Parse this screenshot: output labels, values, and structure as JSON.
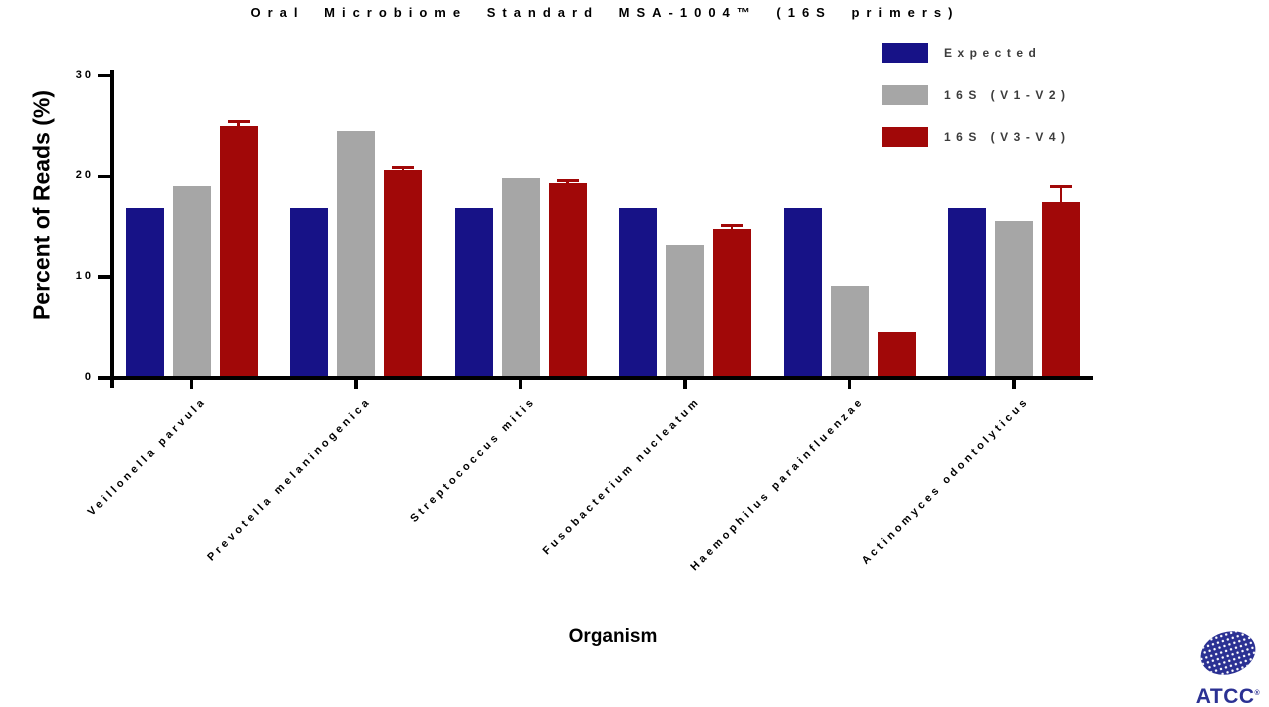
{
  "chart_data": {
    "type": "bar",
    "title": "Oral Microbiome Standard MSA-1004™ (16S primers)",
    "xlabel": "Organism",
    "ylabel": "Percent of Reads (%)",
    "ylim": [
      0,
      30
    ],
    "yticks": [
      0,
      10,
      20,
      30
    ],
    "grid": false,
    "legend_position": "top-right",
    "categories": [
      "Veillonella parvula",
      "Prevotella melaninogenica",
      "Streptococcus mitis",
      "Fusobacterium nucleatum",
      "Haemophilus parainfluenzae",
      "Actinomyces odontolyticus"
    ],
    "series": [
      {
        "name": "Expected",
        "color": "#171287",
        "values": [
          16.9,
          16.9,
          16.9,
          16.9,
          16.9,
          16.9
        ]
      },
      {
        "name": "16S (V1-V2)",
        "color": "#a6a6a6",
        "values": [
          19.0,
          24.5,
          19.8,
          13.2,
          9.1,
          15.6
        ]
      },
      {
        "name": "16S (V3-V4)",
        "color": "#a10808",
        "values": [
          25.0,
          20.6,
          19.3,
          14.8,
          4.6,
          17.5
        ],
        "errors": [
          0.4,
          0.3,
          0.3,
          0.3,
          0,
          1.5
        ]
      }
    ]
  },
  "branding": {
    "name": "ATCC",
    "registered": "®",
    "color": "#2b3193"
  }
}
